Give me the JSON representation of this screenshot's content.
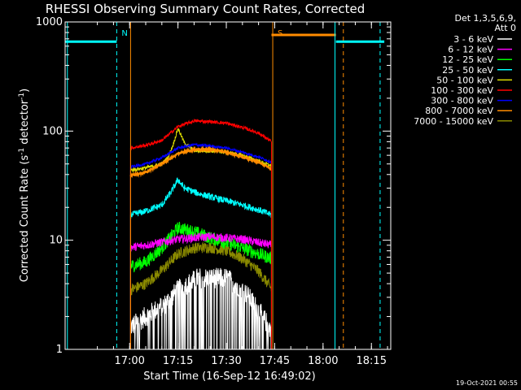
{
  "chart_data": {
    "type": "line",
    "title": "RHESSI Observing Summary Count Rates, Corrected",
    "xlabel": "Start Time (16-Sep-12 16:49:02)",
    "ylabel_main": "Corrected Count Rate (s",
    "ylabel_sup1": "-1",
    "ylabel_mid": " detector",
    "ylabel_sup2": "-1",
    "ylabel_end": ")",
    "yscale": "log",
    "ylim": [
      1,
      1000
    ],
    "xlim_min": [
      -9,
      92
    ],
    "xticks": [
      {
        "t": 11,
        "label": "17:00"
      },
      {
        "t": 26,
        "label": "17:15"
      },
      {
        "t": 41,
        "label": "17:30"
      },
      {
        "t": 56,
        "label": "17:45"
      },
      {
        "t": 71,
        "label": "18:00"
      },
      {
        "t": 86,
        "label": "18:15"
      }
    ],
    "yticks": [
      {
        "v": 1,
        "label": "1"
      },
      {
        "v": 10,
        "label": "10"
      },
      {
        "v": 100,
        "label": "100"
      },
      {
        "v": 1000,
        "label": "1000"
      }
    ],
    "legend_header": [
      "Det 1,3,5,6,9,",
      "Att 0"
    ],
    "legend_position": "top-right",
    "series": [
      {
        "name": "3 - 6 keV",
        "color": "#ffffff"
      },
      {
        "name": "6 - 12 keV",
        "color": "#ff00ff"
      },
      {
        "name": "12 - 25 keV",
        "color": "#00ff00"
      },
      {
        "name": "25 - 50 keV",
        "color": "#00ffff"
      },
      {
        "name": "50 - 100 keV",
        "color": "#e0e000"
      },
      {
        "name": "100 - 300 keV",
        "color": "#ff0000"
      },
      {
        "name": "300 - 800 keV",
        "color": "#0000ff"
      },
      {
        "name": "800 - 7000 keV",
        "color": "#ff8c00"
      },
      {
        "name": "7000 - 15000 keV",
        "color": "#8a8a00"
      }
    ],
    "profiles_note": "approximate rate profiles, minutes after 16:49:02",
    "profiles": {
      "3 - 6 keV": {
        "x": [
          11.3,
          16,
          22,
          26,
          32,
          37,
          41,
          46,
          50,
          55
        ],
        "y": [
          1.6,
          2.0,
          2.6,
          3.5,
          4.5,
          4.5,
          4.5,
          3.6,
          2.5,
          1.5
        ]
      },
      "6 - 12 keV": {
        "x": [
          11.3,
          16,
          21,
          26,
          31,
          36,
          41,
          46,
          51,
          55
        ],
        "y": [
          8.6,
          9.0,
          9.6,
          10.2,
          10.5,
          10.8,
          10.5,
          10.2,
          9.5,
          9.0
        ]
      },
      "12 - 25 keV": {
        "x": [
          11.3,
          16,
          21,
          26,
          31,
          36,
          41,
          46,
          51,
          55
        ],
        "y": [
          5.8,
          6.3,
          8.5,
          13,
          12,
          10.5,
          9.5,
          8.5,
          7.5,
          6.8
        ]
      },
      "25 - 50 keV": {
        "x": [
          11.3,
          16,
          21,
          24,
          26,
          28,
          32,
          36,
          41,
          46,
          51,
          55
        ],
        "y": [
          17,
          18.5,
          21,
          28,
          36,
          30,
          27,
          25,
          23,
          21,
          19,
          17
        ]
      },
      "50 - 100 keV": {
        "x": [
          11.3,
          16,
          21,
          23,
          24.5,
          26,
          28,
          31,
          36,
          41,
          46,
          51,
          55
        ],
        "y": [
          44,
          46,
          50,
          58,
          75,
          106,
          78,
          66,
          66,
          64,
          60,
          53,
          48
        ]
      },
      "100 - 300 keV": {
        "x": [
          11.3,
          16,
          21,
          26,
          31,
          36,
          41,
          46,
          51,
          55
        ],
        "y": [
          70,
          74,
          82,
          110,
          124,
          122,
          118,
          108,
          96,
          80
        ]
      },
      "300 - 800 keV": {
        "x": [
          11.3,
          16,
          21,
          26,
          31,
          36,
          41,
          46,
          51,
          55
        ],
        "y": [
          47,
          50,
          57,
          70,
          75,
          73,
          70,
          64,
          58,
          52
        ]
      },
      "800 - 7000 keV": {
        "x": [
          11.3,
          16,
          21,
          26,
          31,
          36,
          41,
          46,
          51,
          55
        ],
        "y": [
          39,
          42,
          50,
          62,
          68,
          68,
          64,
          58,
          52,
          45
        ]
      },
      "7000 - 15000 keV": {
        "x": [
          11.3,
          16,
          21,
          26,
          31,
          36,
          41,
          46,
          51,
          55
        ],
        "y": [
          3.5,
          4.0,
          5.3,
          7.5,
          8.5,
          8.6,
          8.0,
          6.8,
          5.2,
          3.6
        ]
      }
    },
    "segments": [
      {
        "name": "cyan-segment-left",
        "color": "#00ffff",
        "x": [
          -9,
          7
        ],
        "y": 660
      },
      {
        "name": "orange-segment-S",
        "color": "#ff8c00",
        "x": [
          55,
          75
        ],
        "y": 760
      },
      {
        "name": "cyan-segment-right",
        "color": "#00ffff",
        "x": [
          75,
          90
        ],
        "y": 660
      }
    ],
    "events": [
      {
        "name": "night-end-line",
        "t": 7,
        "color": "#00ffff",
        "style": "dashed",
        "marker": "N"
      },
      {
        "name": "data-start-line",
        "t": 11.3,
        "color": "#ff8c00",
        "style": "solid"
      },
      {
        "name": "saa-start-line",
        "t": 55.4,
        "color": "#ff8c00",
        "style": "solid",
        "marker": "S"
      },
      {
        "name": "saa-end-line",
        "t": 77.3,
        "color": "#ff8c00",
        "style": "dashed"
      },
      {
        "name": "night-start-line",
        "t": 74.7,
        "color": "#00ffff",
        "style": "solid"
      },
      {
        "name": "day-end-line",
        "t": 88.7,
        "color": "#00ffff",
        "style": "dashed"
      },
      {
        "name": "left-edge-line",
        "t": -8.3,
        "color": "#00ffff",
        "style": "solid"
      }
    ],
    "grid": false
  },
  "footer_timestamp": "19-Oct-2021 00:55"
}
